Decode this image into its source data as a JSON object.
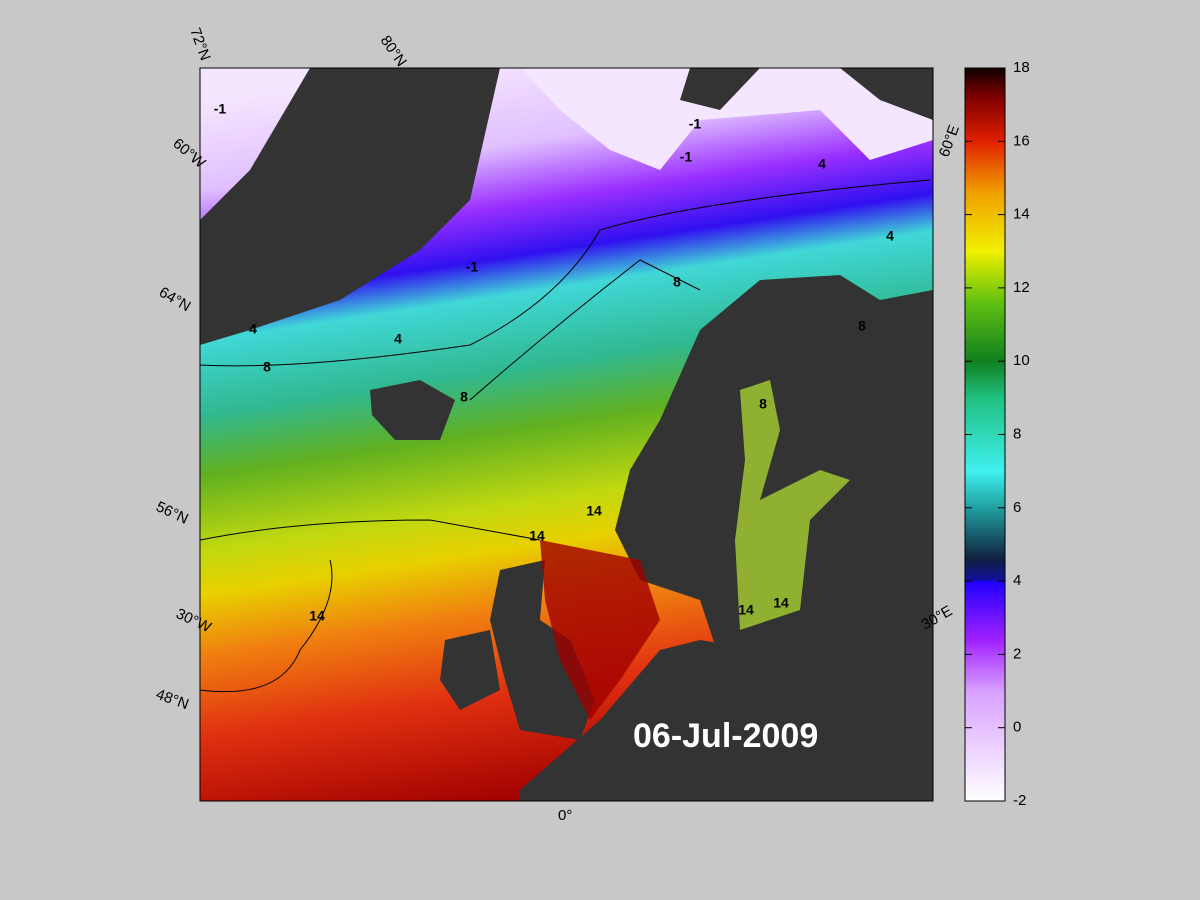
{
  "map": {
    "date": "06-Jul-2009",
    "graticule_labels": [
      "72°N",
      "80°N",
      "60°W",
      "64°N",
      "56°N",
      "30°W",
      "48°N",
      "0°",
      "60°E",
      "30°E"
    ],
    "contour_labels": [
      -1,
      -1,
      -1,
      -1,
      4,
      4,
      4,
      4,
      8,
      8,
      8,
      8,
      8,
      14,
      14,
      14,
      14,
      14
    ]
  },
  "colorbar": {
    "lim": [
      -2,
      18
    ],
    "ticks": [
      -2,
      0,
      2,
      4,
      6,
      8,
      10,
      12,
      14,
      16,
      18
    ]
  }
}
